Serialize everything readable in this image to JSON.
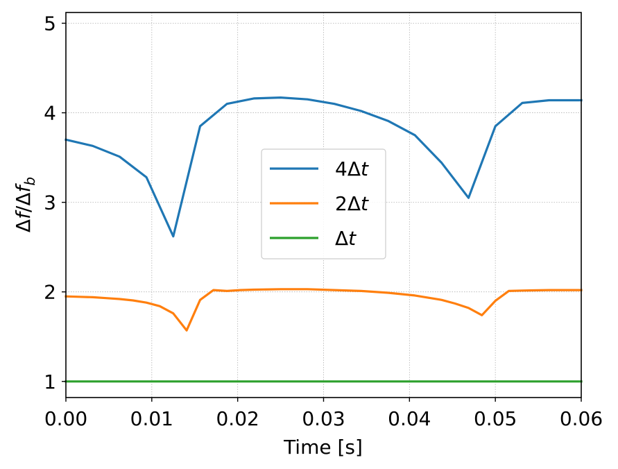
{
  "chart_data": {
    "type": "line",
    "xlabel": "Time [s]",
    "ylabel": "Δf/Δf_b",
    "xlim": [
      0,
      0.06
    ],
    "ylim": [
      0.82,
      5.12
    ],
    "grid": true,
    "legend_placement": "center",
    "x_ticks": [
      "0.00",
      "0.01",
      "0.02",
      "0.03",
      "0.04",
      "0.05",
      "0.06"
    ],
    "y_ticks": [
      "1",
      "2",
      "3",
      "4",
      "5"
    ],
    "series": [
      {
        "name": "4Δt",
        "color": "#1f77b4",
        "x": [
          0.0,
          0.003125,
          0.00625,
          0.009375,
          0.0125,
          0.015625,
          0.01875,
          0.021875,
          0.025,
          0.028125,
          0.03125,
          0.034375,
          0.0375,
          0.040625,
          0.04375,
          0.046875,
          0.05,
          0.053125,
          0.05625,
          0.06
        ],
        "values": [
          3.7,
          3.63,
          3.51,
          3.28,
          2.62,
          3.85,
          4.1,
          4.16,
          4.17,
          4.15,
          4.1,
          4.02,
          3.91,
          3.75,
          3.44,
          3.05,
          3.85,
          4.11,
          4.14,
          4.14
        ]
      },
      {
        "name": "2Δt",
        "color": "#ff7f0e",
        "x": [
          0.0,
          0.0015625,
          0.003125,
          0.0046875,
          0.00625,
          0.0078125,
          0.009375,
          0.0109375,
          0.0125,
          0.0140625,
          0.015625,
          0.0171875,
          0.01875,
          0.020313,
          0.021875,
          0.025,
          0.028125,
          0.03125,
          0.034375,
          0.0375,
          0.040625,
          0.04375,
          0.045313,
          0.046875,
          0.048438,
          0.05,
          0.051563,
          0.053125,
          0.05625,
          0.06
        ],
        "values": [
          1.95,
          1.945,
          1.94,
          1.93,
          1.92,
          1.905,
          1.88,
          1.84,
          1.76,
          1.57,
          1.91,
          2.02,
          2.01,
          2.02,
          2.025,
          2.03,
          2.03,
          2.02,
          2.01,
          1.99,
          1.96,
          1.91,
          1.87,
          1.82,
          1.74,
          1.9,
          2.01,
          2.015,
          2.02,
          2.02
        ]
      },
      {
        "name": "Δt",
        "color": "#2ca02c",
        "x": [
          0.0,
          0.06
        ],
        "values": [
          1.0,
          1.0
        ]
      }
    ]
  }
}
